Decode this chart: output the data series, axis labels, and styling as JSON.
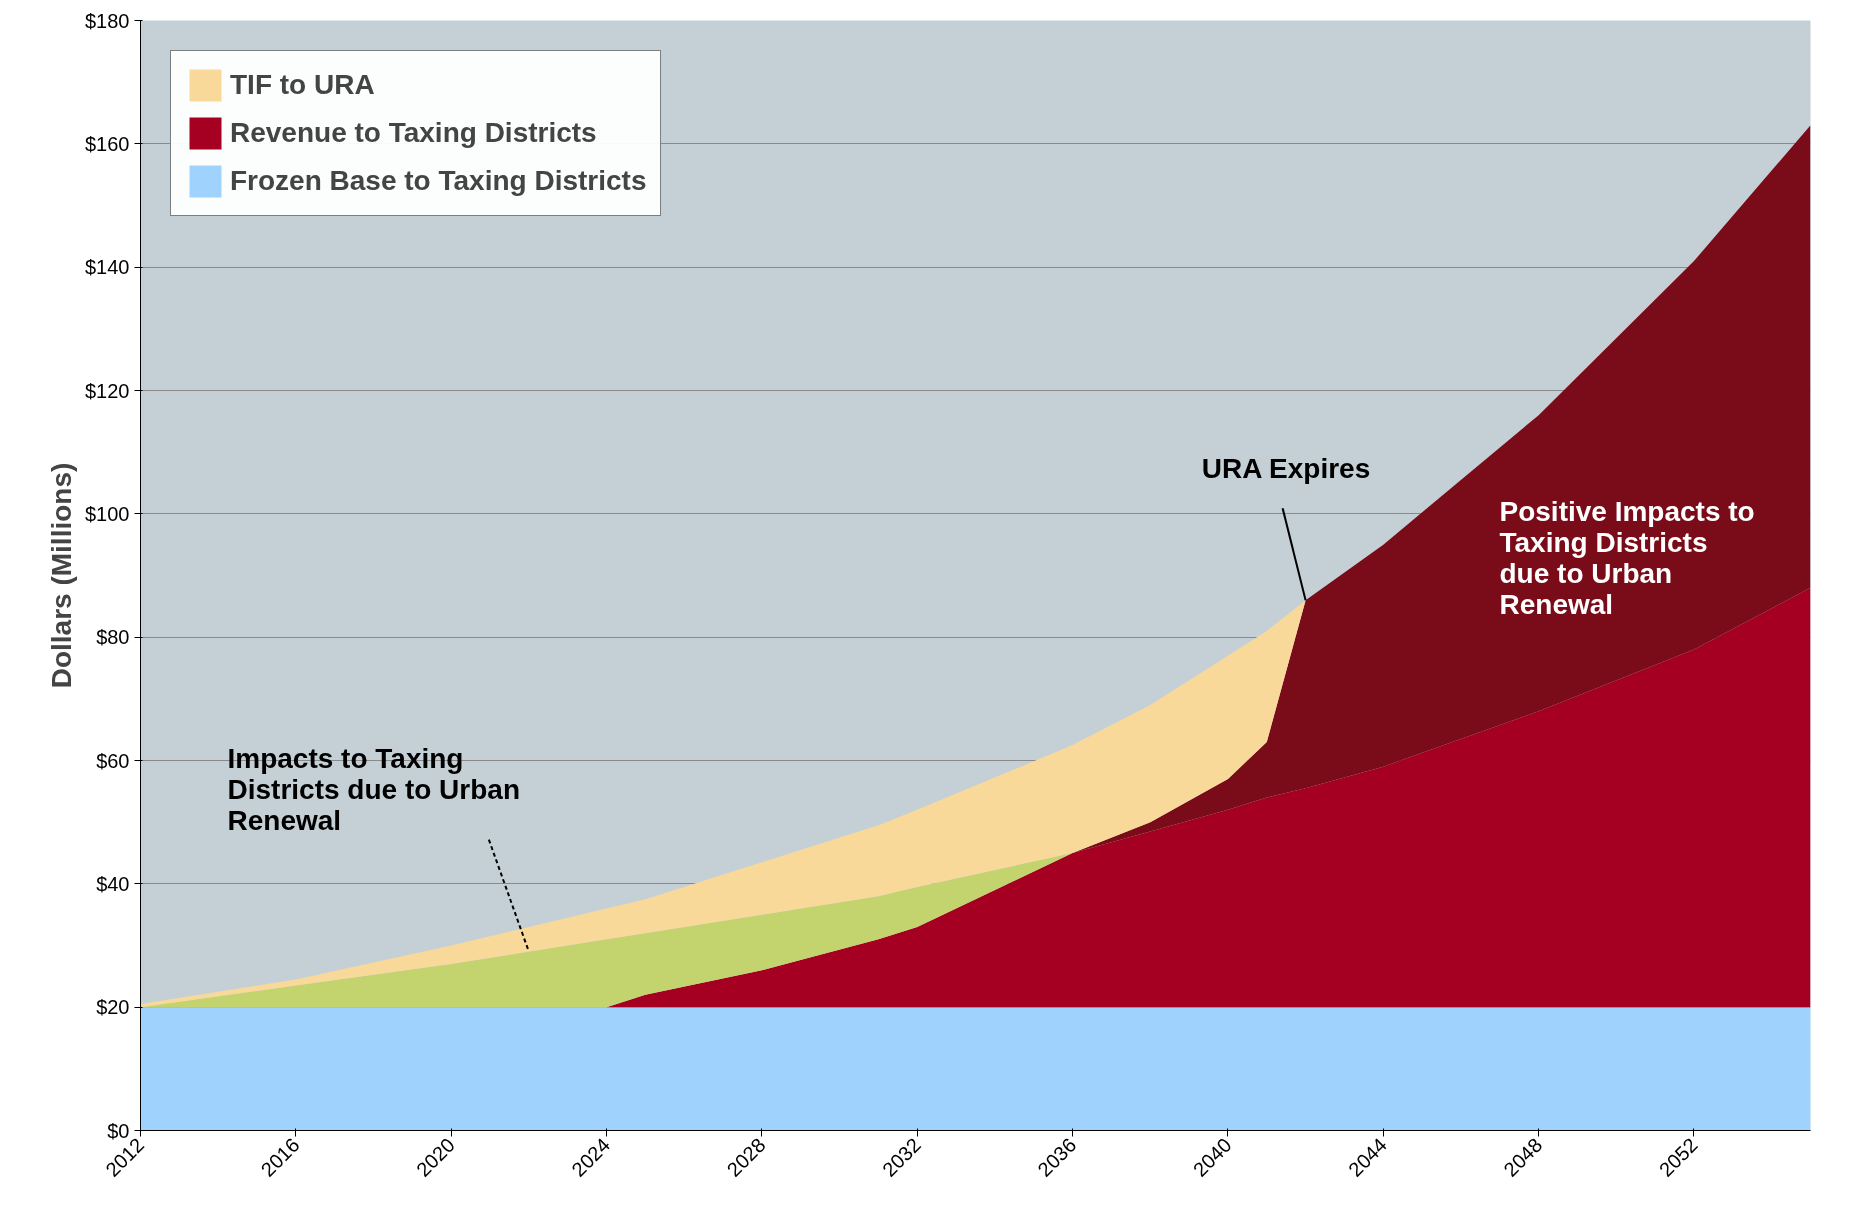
{
  "chart_data": {
    "type": "area",
    "stacked": true,
    "ylabel": "Dollars (Millions)",
    "x": [
      2012,
      2016,
      2020,
      2024,
      2025,
      2028,
      2031,
      2032,
      2036,
      2038,
      2040,
      2041,
      2042,
      2044,
      2048,
      2052,
      2055
    ],
    "series": [
      {
        "name": "Frozen Base to Taxing Districts",
        "color": "#9fd3fd",
        "values": [
          20,
          20,
          20,
          20,
          20,
          20,
          20,
          20,
          20,
          20,
          20,
          20,
          20,
          20,
          20,
          20,
          20
        ]
      },
      {
        "name": "Revenue to Taxing Districts",
        "color": "#a50021",
        "values": [
          null,
          null,
          null,
          0,
          2,
          6,
          11,
          13,
          25,
          28.5,
          32,
          34,
          35.5,
          39,
          48,
          58,
          68
        ]
      },
      {
        "color": "#c3d46e",
        "values": [
          0,
          3.5,
          7,
          11,
          10,
          9,
          7,
          6.5,
          0,
          null,
          null,
          null,
          null,
          null,
          null,
          null,
          null
        ]
      },
      {
        "color": "#7a0b18",
        "values": [
          null,
          null,
          null,
          null,
          null,
          null,
          null,
          null,
          0,
          1.5,
          5,
          9,
          30.5,
          36,
          48,
          63,
          75
        ]
      },
      {
        "name": "TIF to URA",
        "color": "#f9d99a",
        "values": [
          0.5,
          1,
          3,
          5,
          5.5,
          8.5,
          11.5,
          12.5,
          17.5,
          19,
          20,
          18,
          0,
          null,
          null,
          null,
          null
        ]
      }
    ],
    "xlim": [
      2012,
      2055
    ],
    "ylim": [
      0,
      180
    ],
    "xticks": [
      2012,
      2016,
      2020,
      2024,
      2028,
      2032,
      2036,
      2040,
      2044,
      2048,
      2052
    ],
    "yticks": [
      {
        "value": 0,
        "label": "$0"
      },
      {
        "value": 20,
        "label": "$20"
      },
      {
        "value": 40,
        "label": "$40"
      },
      {
        "value": 60,
        "label": "$60"
      },
      {
        "value": 80,
        "label": "$80"
      },
      {
        "value": 100,
        "label": "$100"
      },
      {
        "value": 120,
        "label": "$120"
      },
      {
        "value": 140,
        "label": "$140"
      },
      {
        "value": 160,
        "label": "$160"
      },
      {
        "value": 180,
        "label": "$180"
      }
    ],
    "grid": "y",
    "legend": "top left",
    "annotations": [
      {
        "text": "Impacts to Taxing\nDistricts due to Urban\nRenewal",
        "x": 2022,
        "y": 29
      },
      {
        "text": "URA Expires",
        "x": 2042,
        "y": 86
      },
      "Positive Impacts to\nTaxing Districts\ndue to Urban\nRenewal"
    ]
  }
}
